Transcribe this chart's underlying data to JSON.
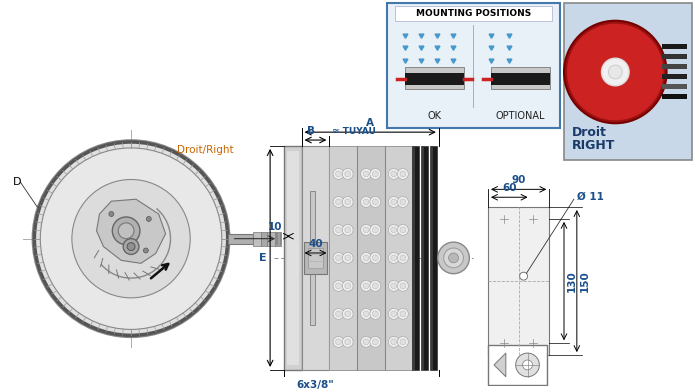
{
  "bg_color": "#ffffff",
  "dim_color": "#000000",
  "blue_dim_color": "#1a4f8a",
  "labels": {
    "droit_right": "Droit/Right",
    "D": "D",
    "E": "E",
    "A": "A",
    "B": "B",
    "TUYAU": "≈ TUYAU",
    "dim_40": "40",
    "dim_10": "10",
    "dim_6x38": "6x3/8\"",
    "dim_90": "90",
    "dim_60": "60",
    "dim_phi11": "Ø 11",
    "dim_130": "130",
    "dim_150": "150",
    "mounting_title": "MOUNTING POSITIONS",
    "ok": "OK",
    "optional": "OPTIONAL",
    "droit": "Droit",
    "right": "RIGHT"
  }
}
